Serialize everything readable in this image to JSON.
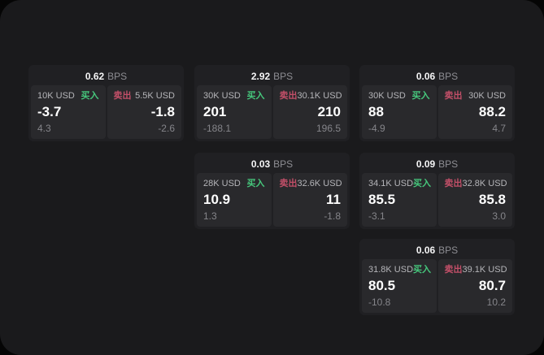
{
  "labels": {
    "bps": "BPS",
    "buy": "买入",
    "sell": "卖出"
  },
  "colors": {
    "buy": "#46c77c",
    "sell": "#c24f68",
    "window_bg": "#1a1a1c",
    "card_bg": "#202023",
    "panel_bg": "#29292c"
  },
  "cards": [
    {
      "grid": {
        "column": 0,
        "row": 0
      },
      "bps": "0.62",
      "buy": {
        "amount": "10K USD",
        "value": "-3.7",
        "sub": "4.3"
      },
      "sell": {
        "amount": "5.5K USD",
        "value": "-1.8",
        "sub": "-2.6"
      }
    },
    {
      "grid": {
        "column": 1,
        "row": 0
      },
      "bps": "2.92",
      "buy": {
        "amount": "30K USD",
        "value": "201",
        "sub": "-188.1"
      },
      "sell": {
        "amount": "30.1K USD",
        "value": "210",
        "sub": "196.5"
      }
    },
    {
      "grid": {
        "column": 2,
        "row": 0
      },
      "bps": "0.06",
      "buy": {
        "amount": "30K USD",
        "value": "88",
        "sub": "-4.9"
      },
      "sell": {
        "amount": "30K USD",
        "value": "88.2",
        "sub": "4.7"
      }
    },
    {
      "grid": {
        "column": 1,
        "row": 1
      },
      "bps": "0.03",
      "buy": {
        "amount": "28K USD",
        "value": "10.9",
        "sub": "1.3"
      },
      "sell": {
        "amount": "32.6K USD",
        "value": "11",
        "sub": "-1.8"
      }
    },
    {
      "grid": {
        "column": 2,
        "row": 1
      },
      "bps": "0.09",
      "buy": {
        "amount": "34.1K USD",
        "value": "85.5",
        "sub": "-3.1"
      },
      "sell": {
        "amount": "32.8K USD",
        "value": "85.8",
        "sub": "3.0"
      }
    },
    {
      "grid": {
        "column": 2,
        "row": 2
      },
      "bps": "0.06",
      "buy": {
        "amount": "31.8K USD",
        "value": "80.5",
        "sub": "-10.8"
      },
      "sell": {
        "amount": "39.1K USD",
        "value": "80.7",
        "sub": "10.2"
      }
    }
  ]
}
